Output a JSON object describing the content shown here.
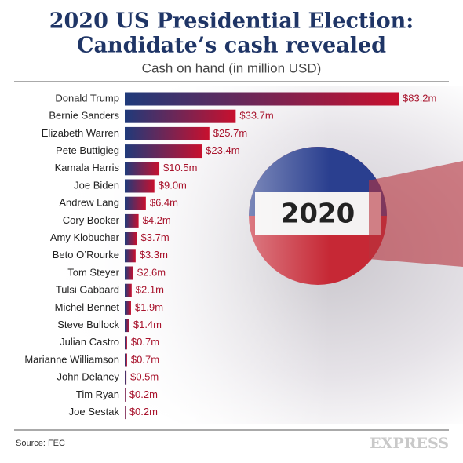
{
  "chart_data": {
    "type": "bar",
    "orientation": "horizontal",
    "title": "2020 US Presidential Election:",
    "title_line2": "Candidate’s cash revealed",
    "subtitle": "Cash on hand (in million USD)",
    "categories": [
      "Donald Trump",
      "Bernie Sanders",
      "Elizabeth Warren",
      "Pete Buttigieg",
      "Kamala Harris",
      "Joe Biden",
      "Andrew Lang",
      "Cory Booker",
      "Amy Klobucher",
      "Beto O’Rourke",
      "Tom Steyer",
      "Tulsi Gabbard",
      "Michel Bennet",
      "Steve Bullock",
      "Julian Castro",
      "Marianne Williamson",
      "John Delaney",
      "Tim Ryan",
      "Joe Sestak"
    ],
    "values": [
      83.2,
      33.7,
      25.7,
      23.4,
      10.5,
      9.0,
      6.4,
      4.2,
      3.7,
      3.3,
      2.6,
      2.1,
      1.9,
      1.4,
      0.7,
      0.7,
      0.5,
      0.2,
      0.2
    ],
    "value_labels": [
      "$83.2m",
      "$33.7m",
      "$25.7m",
      "$23.4m",
      "$10.5m",
      "$9.0m",
      "$6.4m",
      "$4.2m",
      "$3.7m",
      "$3.3m",
      "$2.6m",
      "$2.1m",
      "$1.9m",
      "$1.4m",
      "$0.7m",
      "$0.7m",
      "$0.5m",
      "$0.2m",
      "$0.2m"
    ],
    "color_start": "#1f3a7a",
    "color_end": "#c8102e",
    "source": "Source: FEC",
    "logo": "EXPRESS",
    "image_text": "2020"
  }
}
